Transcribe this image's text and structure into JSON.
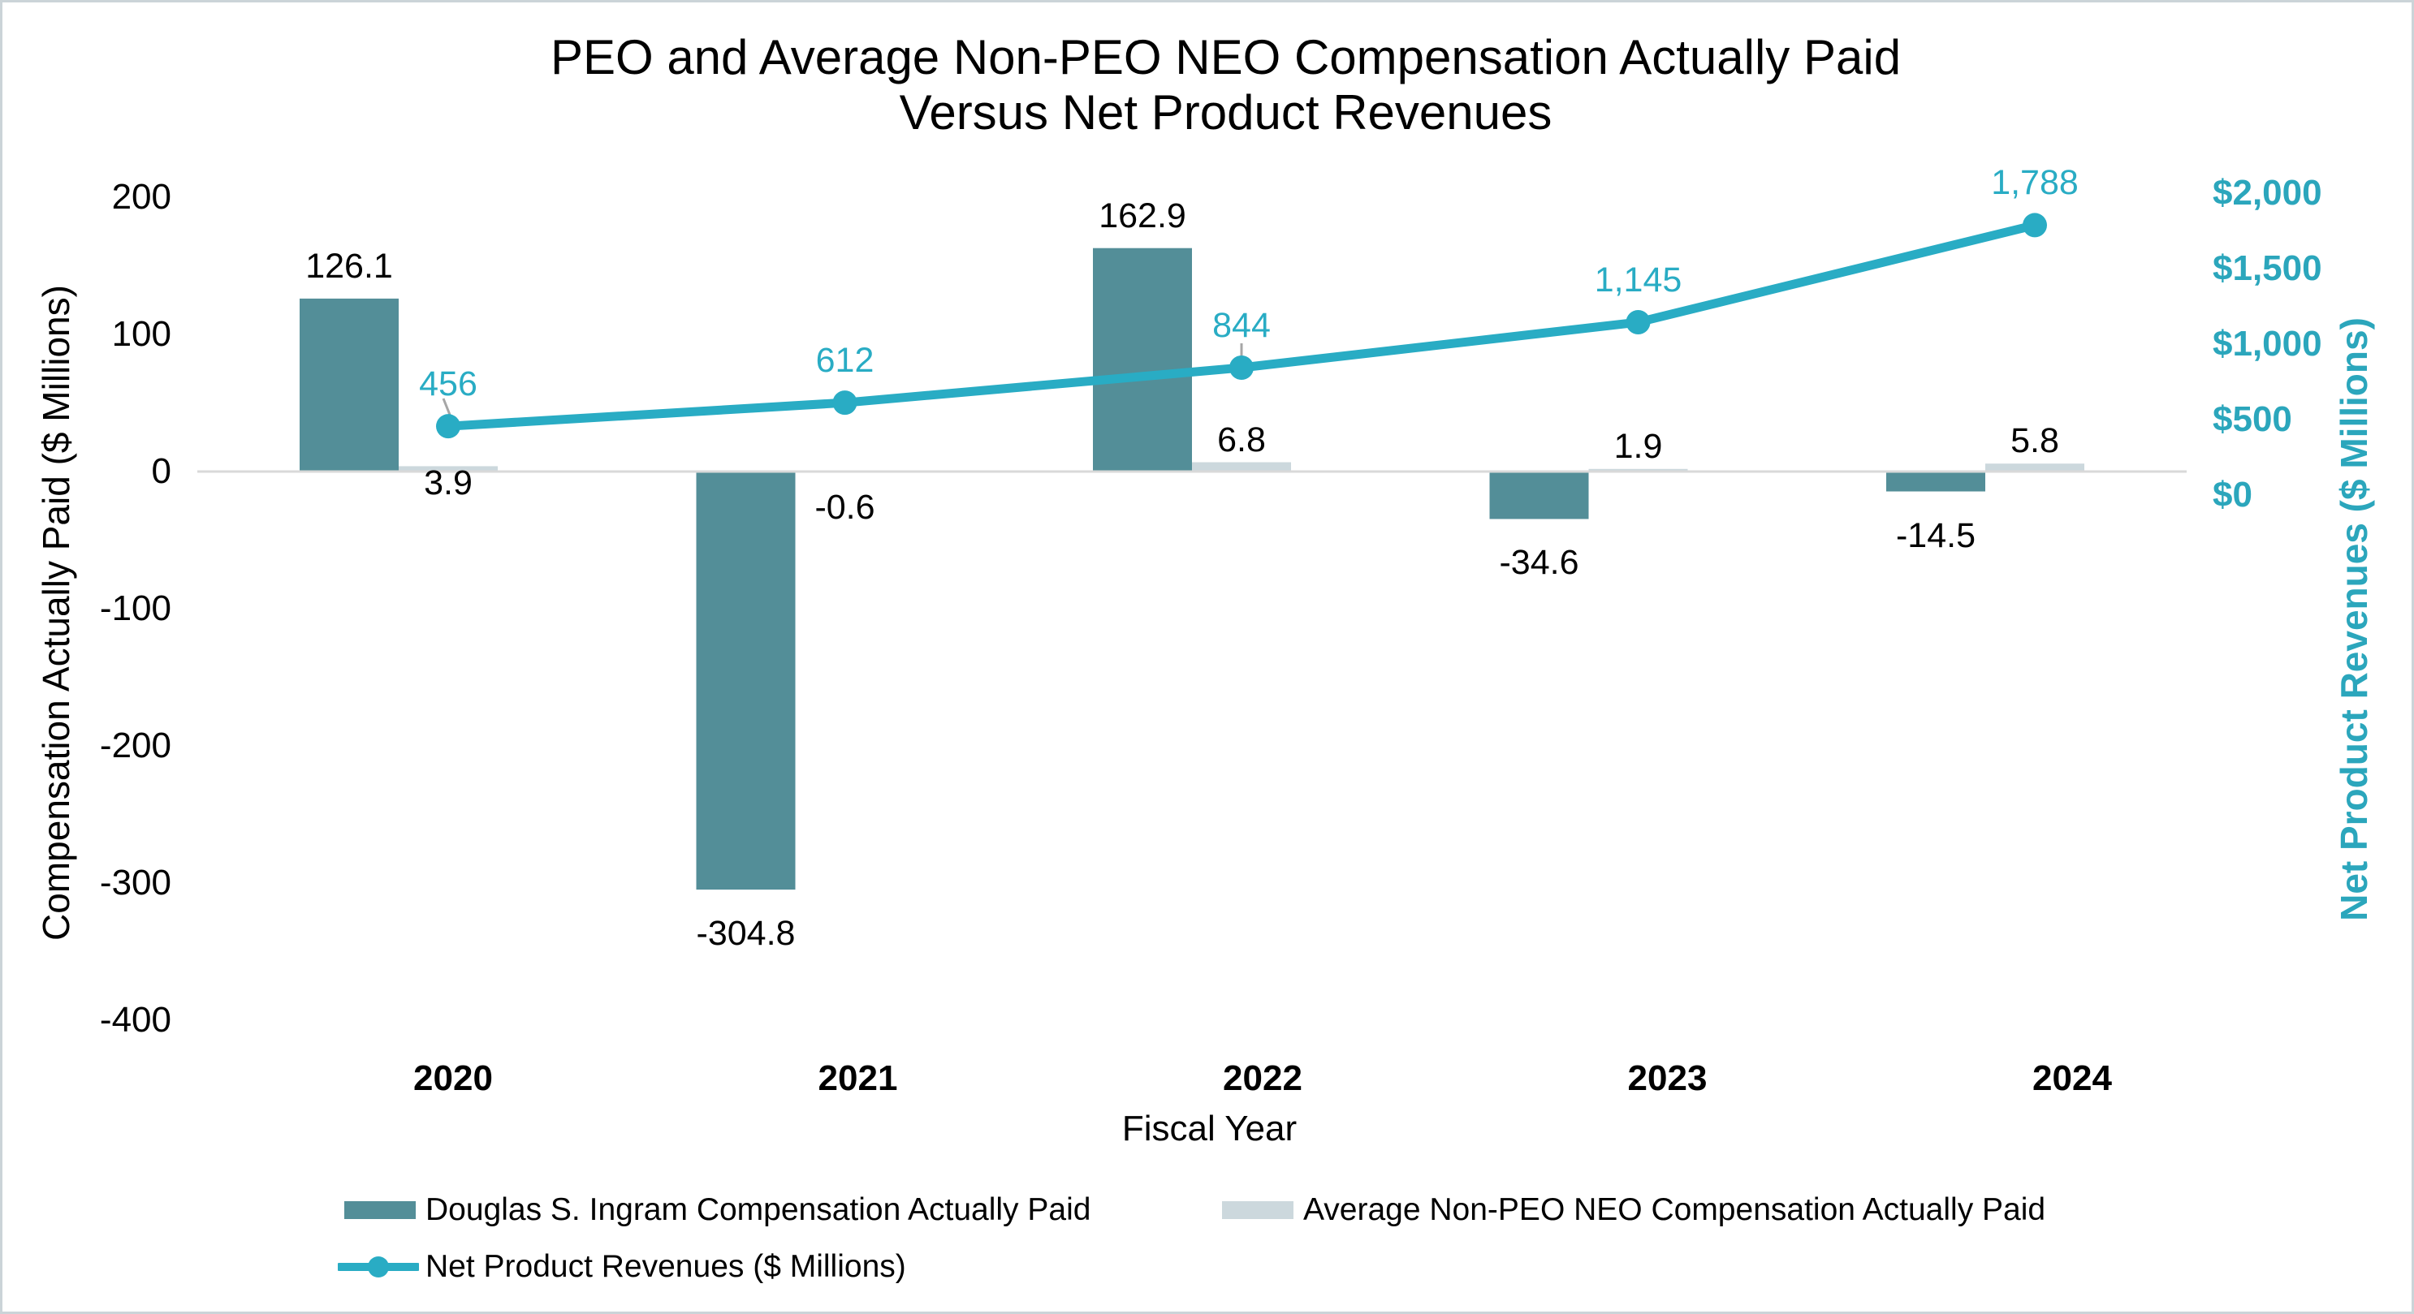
{
  "title": {
    "line1": "PEO and Average Non-PEO NEO Compensation Actually Paid",
    "line2": "Versus Net Product Revenues"
  },
  "left_axis": {
    "title": "Compensation Actually Paid ($ Millions)",
    "ticks": [
      {
        "label": "200",
        "value": 200
      },
      {
        "label": "100",
        "value": 100
      },
      {
        "label": "0",
        "value": 0
      },
      {
        "label": "-100",
        "value": -100
      },
      {
        "label": "-200",
        "value": -200
      },
      {
        "label": "-300",
        "value": -300
      },
      {
        "label": "-400",
        "value": -400
      }
    ]
  },
  "right_axis": {
    "title": "Net Product Revenues ($ Millions)",
    "ticks": [
      {
        "label": "$2,000",
        "value": 2000
      },
      {
        "label": "$1,500",
        "value": 1500
      },
      {
        "label": "$1,000",
        "value": 1000
      },
      {
        "label": "$500",
        "value": 500
      },
      {
        "label": "$0",
        "value": 0
      }
    ]
  },
  "x_axis": {
    "title": "Fiscal Year",
    "categories": [
      "2020",
      "2021",
      "2022",
      "2023",
      "2024"
    ]
  },
  "legend": {
    "items": [
      {
        "label": "Douglas S. Ingram Compensation Actually Paid",
        "swatch": "bar-dark"
      },
      {
        "label": "Average Non-PEO NEO Compensation Actually Paid",
        "swatch": "bar-light"
      },
      {
        "label": "Net Product Revenues ($ Millions)",
        "swatch": "line-marker"
      }
    ]
  },
  "colors": {
    "bar_dark": "#538E98",
    "bar_light": "#CCD8DD",
    "line": "#29ACC4",
    "right_axis_text": "#2BA6BC",
    "axis_line": "#D9D9D9",
    "leader": "#A6A6A6",
    "text": "#000000",
    "border": "#CBD4D8"
  },
  "chart_data": {
    "type": "combo",
    "title": "PEO and Average Non-PEO NEO Compensation Actually Paid Versus Net Product Revenues",
    "xlabel": "Fiscal Year",
    "ylabel_left": "Compensation Actually Paid ($ Millions)",
    "ylabel_right": "Net Product Revenues ($ Millions)",
    "ylim_left": [
      -400,
      200
    ],
    "ylim_right": [
      0,
      2000
    ],
    "grid": false,
    "legend_position": "bottom",
    "categories": [
      "2020",
      "2021",
      "2022",
      "2023",
      "2024"
    ],
    "series": [
      {
        "name": "Douglas S. Ingram Compensation Actually Paid",
        "type": "bar",
        "axis": "left",
        "values": [
          126.1,
          -304.8,
          162.9,
          -34.6,
          -14.5
        ],
        "labels": [
          "126.1",
          "-304.8",
          "162.9",
          "-34.6",
          "-14.5"
        ]
      },
      {
        "name": "Average Non-PEO NEO Compensation Actually Paid",
        "type": "bar",
        "axis": "left",
        "values": [
          3.9,
          -0.6,
          6.8,
          1.9,
          5.8
        ],
        "labels": [
          "3.9",
          "-0.6",
          "6.8",
          "1.9",
          "5.8"
        ]
      },
      {
        "name": "Net Product Revenues ($ Millions)",
        "type": "line",
        "axis": "right",
        "values": [
          456,
          612,
          844,
          1145,
          1788
        ],
        "labels": [
          "456",
          "612",
          "844",
          "1,145",
          "1,788"
        ]
      }
    ]
  }
}
